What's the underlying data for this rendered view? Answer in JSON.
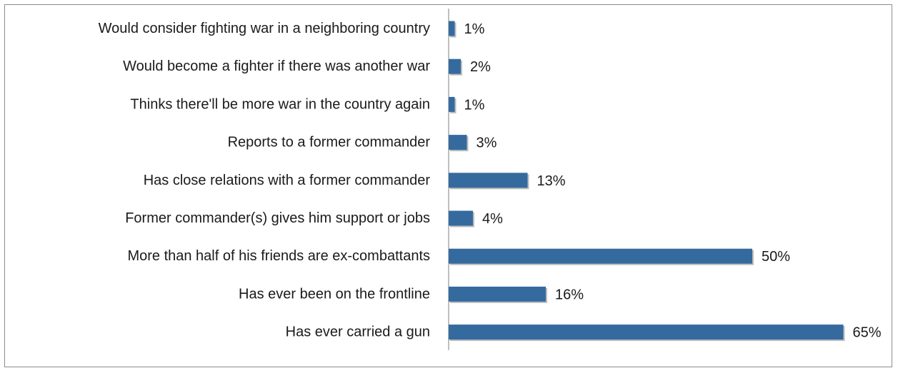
{
  "chart_data": {
    "type": "bar",
    "orientation": "horizontal",
    "categories": [
      "Would consider fighting war in a neighboring country",
      "Would become a fighter if there was another war",
      "Thinks there'll be more war in the country again",
      "Reports to a former commander",
      "Has close relations with a former commander",
      "Former commander(s) gives him support or jobs",
      "More than half of his friends are ex-combattants",
      "Has ever been on the frontline",
      "Has ever carried a gun"
    ],
    "values": [
      1,
      2,
      1,
      3,
      13,
      4,
      50,
      16,
      65
    ],
    "value_labels": [
      "1%",
      "2%",
      "1%",
      "3%",
      "13%",
      "4%",
      "50%",
      "16%",
      "65%"
    ],
    "unit": "%",
    "xlim": [
      0,
      70
    ],
    "grid": false,
    "legend": "none",
    "bar_color": "#356a9e",
    "bar_shadow_color": "#bdbdbd",
    "axis_color": "#7f7f7f",
    "frame_color": "#8c8c8c"
  }
}
